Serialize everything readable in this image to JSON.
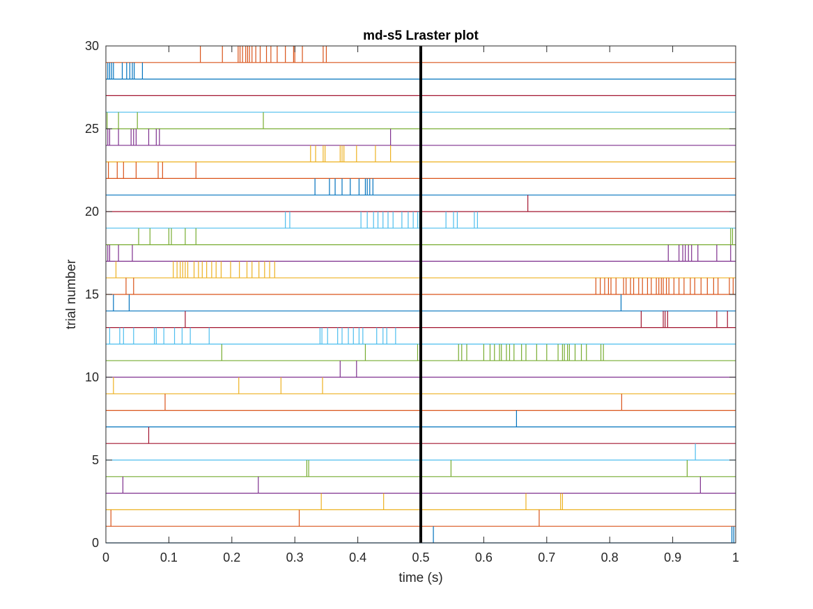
{
  "chart_data": {
    "type": "scatter",
    "title": "md-s5 Lraster plot",
    "xlabel": "time (s)",
    "ylabel": "trial number",
    "xlim": [
      0,
      1
    ],
    "ylim": [
      0,
      30
    ],
    "xticks": [
      "0",
      "0.1",
      "0.2",
      "0.3",
      "0.4",
      "0.5",
      "0.6",
      "0.7",
      "0.8",
      "0.9",
      "1"
    ],
    "yticks": [
      "0",
      "5",
      "10",
      "15",
      "20",
      "25",
      "30"
    ],
    "grid": false,
    "legend": "none",
    "event_marker": {
      "x": 0.5,
      "color": "#000000"
    },
    "series_colors": [
      "#0072bd",
      "#d95319",
      "#edb120",
      "#7e2f8e",
      "#77ac30",
      "#4dbeee",
      "#a2142f"
    ],
    "trials": [
      {
        "trial": 1,
        "color": "#0072bd",
        "spikes": [
          0.52,
          0.994,
          0.997
        ]
      },
      {
        "trial": 2,
        "color": "#d95319",
        "spikes": [
          0.008,
          0.307,
          0.688
        ]
      },
      {
        "trial": 3,
        "color": "#edb120",
        "spikes": [
          0.342,
          0.441,
          0.667,
          0.722,
          0.725
        ]
      },
      {
        "trial": 4,
        "color": "#7e2f8e",
        "spikes": [
          0.027,
          0.242,
          0.944
        ]
      },
      {
        "trial": 5,
        "color": "#77ac30",
        "spikes": [
          0.319,
          0.322,
          0.548,
          0.923
        ]
      },
      {
        "trial": 6,
        "color": "#4dbeee",
        "spikes": [
          0.936
        ]
      },
      {
        "trial": 7,
        "color": "#a2142f",
        "spikes": [
          0.068
        ]
      },
      {
        "trial": 8,
        "color": "#0072bd",
        "spikes": [
          0.652
        ]
      },
      {
        "trial": 9,
        "color": "#d95319",
        "spikes": [
          0.094,
          0.819
        ]
      },
      {
        "trial": 10,
        "color": "#edb120",
        "spikes": [
          0.012,
          0.211,
          0.278,
          0.344
        ]
      },
      {
        "trial": 11,
        "color": "#7e2f8e",
        "spikes": [
          0.372,
          0.398
        ]
      },
      {
        "trial": 12,
        "color": "#77ac30",
        "spikes": [
          0.184,
          0.412,
          0.495,
          0.56,
          0.565,
          0.573,
          0.6,
          0.61,
          0.617,
          0.625,
          0.628,
          0.636,
          0.641,
          0.648,
          0.66,
          0.667,
          0.684,
          0.7,
          0.718,
          0.725,
          0.728,
          0.733,
          0.736,
          0.745,
          0.755,
          0.763,
          0.786,
          0.79
        ]
      },
      {
        "trial": 13,
        "color": "#4dbeee",
        "spikes": [
          0.006,
          0.022,
          0.028,
          0.044,
          0.077,
          0.08,
          0.092,
          0.109,
          0.121,
          0.134,
          0.164,
          0.34,
          0.343,
          0.352,
          0.368,
          0.375,
          0.385,
          0.393,
          0.402,
          0.408,
          0.43,
          0.44,
          0.446,
          0.46
        ]
      },
      {
        "trial": 14,
        "color": "#a2142f",
        "spikes": [
          0.126,
          0.85,
          0.885,
          0.888,
          0.892,
          0.97,
          0.987
        ]
      },
      {
        "trial": 15,
        "color": "#0072bd",
        "spikes": [
          0.012,
          0.037,
          0.818
        ]
      },
      {
        "trial": 16,
        "color": "#d95319",
        "spikes": [
          0.032,
          0.044,
          0.778,
          0.785,
          0.792,
          0.798,
          0.802,
          0.81,
          0.822,
          0.826,
          0.833,
          0.838,
          0.846,
          0.852,
          0.86,
          0.866,
          0.874,
          0.878,
          0.882,
          0.885,
          0.89,
          0.894,
          0.902,
          0.91,
          0.918,
          0.928,
          0.935,
          0.945,
          0.955,
          0.965,
          0.972,
          0.99,
          0.996
        ]
      },
      {
        "trial": 17,
        "color": "#edb120",
        "spikes": [
          0.016,
          0.107,
          0.113,
          0.118,
          0.122,
          0.126,
          0.13,
          0.14,
          0.147,
          0.153,
          0.16,
          0.168,
          0.175,
          0.183,
          0.198,
          0.212,
          0.224,
          0.232,
          0.243,
          0.252,
          0.26,
          0.268
        ]
      },
      {
        "trial": 18,
        "color": "#7e2f8e",
        "spikes": [
          0.003,
          0.006,
          0.02,
          0.042,
          0.893,
          0.91,
          0.916,
          0.92,
          0.925,
          0.93,
          0.94,
          0.97,
          0.992
        ]
      },
      {
        "trial": 19,
        "color": "#77ac30",
        "spikes": [
          0.052,
          0.07,
          0.1,
          0.104,
          0.126,
          0.143,
          0.992,
          0.995
        ]
      },
      {
        "trial": 20,
        "color": "#4dbeee",
        "spikes": [
          0.285,
          0.292,
          0.405,
          0.415,
          0.425,
          0.432,
          0.44,
          0.448,
          0.456,
          0.47,
          0.48,
          0.488,
          0.495,
          0.498,
          0.54,
          0.552,
          0.558,
          0.585,
          0.59
        ]
      },
      {
        "trial": 21,
        "color": "#a2142f",
        "spikes": [
          0.67
        ]
      },
      {
        "trial": 22,
        "color": "#0072bd",
        "spikes": [
          0.332,
          0.355,
          0.364,
          0.375,
          0.388,
          0.402,
          0.412,
          0.415,
          0.419,
          0.424
        ]
      },
      {
        "trial": 23,
        "color": "#d95319",
        "spikes": [
          0.004,
          0.018,
          0.028,
          0.048,
          0.083,
          0.09,
          0.143
        ]
      },
      {
        "trial": 24,
        "color": "#edb120",
        "spikes": [
          0.325,
          0.333,
          0.345,
          0.348,
          0.372,
          0.375,
          0.378,
          0.398,
          0.428,
          0.452
        ]
      },
      {
        "trial": 25,
        "color": "#7e2f8e",
        "spikes": [
          0.003,
          0.006,
          0.02,
          0.04,
          0.044,
          0.048,
          0.068,
          0.08,
          0.085,
          0.452
        ]
      },
      {
        "trial": 26,
        "color": "#77ac30",
        "spikes": [
          0.002,
          0.02,
          0.05,
          0.25
        ]
      },
      {
        "trial": 27,
        "color": "#4dbeee",
        "spikes": []
      },
      {
        "trial": 28,
        "color": "#a2142f",
        "spikes": []
      },
      {
        "trial": 29,
        "color": "#0072bd",
        "spikes": [
          0.003,
          0.006,
          0.009,
          0.012,
          0.026,
          0.033,
          0.038,
          0.042,
          0.045,
          0.058
        ]
      },
      {
        "trial": 30,
        "color": "#d95319",
        "spikes": [
          0.15,
          0.185,
          0.21,
          0.213,
          0.217,
          0.222,
          0.225,
          0.228,
          0.232,
          0.238,
          0.245,
          0.255,
          0.262,
          0.272,
          0.285,
          0.298,
          0.3,
          0.312,
          0.345,
          0.35
        ]
      }
    ]
  }
}
